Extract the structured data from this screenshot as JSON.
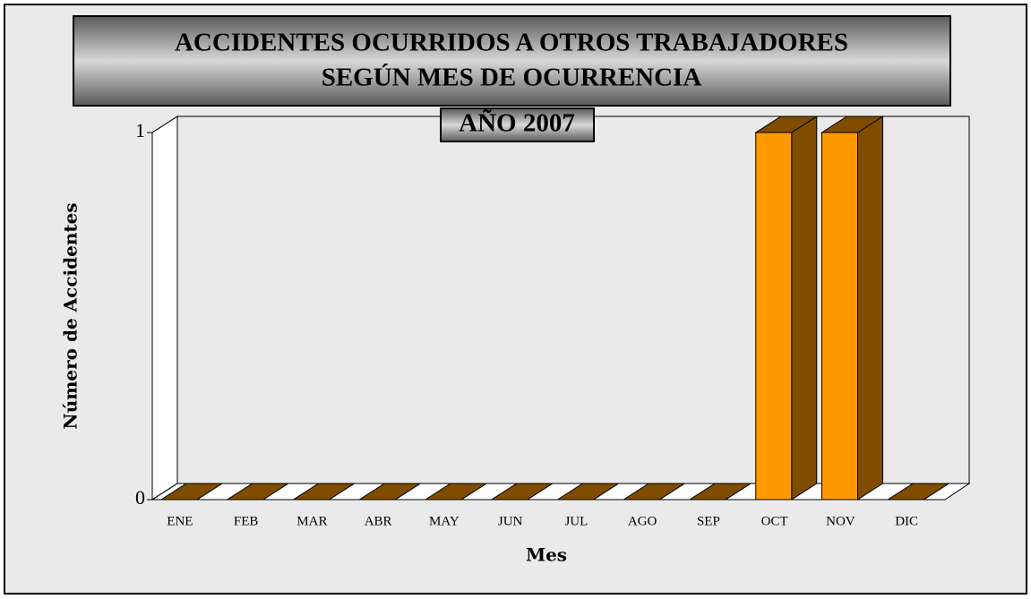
{
  "chart_data": {
    "type": "bar3d",
    "title": [
      "ACCIDENTES OCURRIDOS A OTROS TRABAJADORES",
      "SEGÚN MES DE OCURRENCIA"
    ],
    "subtitle": "AÑO 2007",
    "ylabel": "Número de Accidentes",
    "xlabel": "Mes",
    "categories": [
      "ENE",
      "FEB",
      "MAR",
      "ABR",
      "MAY",
      "JUN",
      "JUL",
      "AGO",
      "SEP",
      "OCT",
      "NOV",
      "DIC"
    ],
    "values": [
      0,
      0,
      0,
      0,
      0,
      0,
      0,
      0,
      0,
      1,
      1,
      0
    ],
    "color": "#ff9900",
    "side_color": "#7f4c00",
    "ylim": [
      0,
      1
    ],
    "yticks": [
      0,
      1
    ],
    "grid": false
  }
}
